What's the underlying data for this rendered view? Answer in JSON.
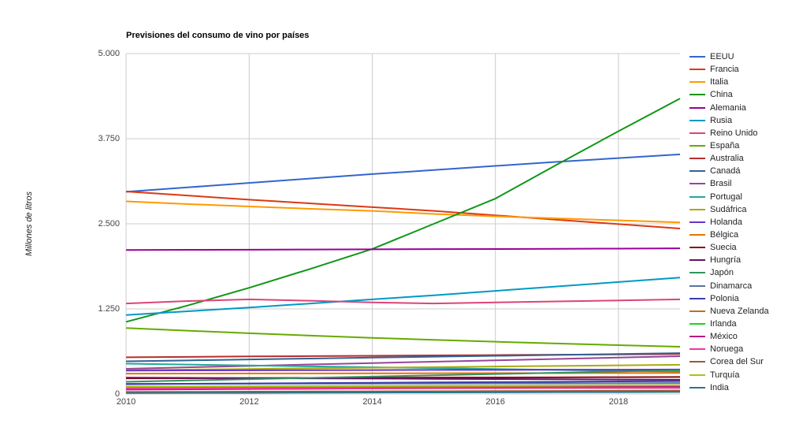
{
  "title": "Previsiones del consumo de vino por países",
  "y_axis_title": "Millones de litros",
  "chart_data": {
    "type": "line",
    "title": "Previsiones del consumo de vino por países",
    "ylabel": "Millones de litros",
    "xlabel": "",
    "xlim": [
      2010,
      2019
    ],
    "ylim": [
      0,
      5000
    ],
    "grid": true,
    "legend_position": "right",
    "x": [
      2010,
      2011,
      2012,
      2013,
      2014,
      2015,
      2016,
      2017,
      2018,
      2019
    ],
    "x_ticks": [
      2010,
      2012,
      2014,
      2016,
      2018
    ],
    "x_tick_labels": [
      "2010",
      "2012",
      "2014",
      "2016",
      "2018"
    ],
    "y_ticks": [
      0,
      1250,
      2500,
      3750,
      5000
    ],
    "y_tick_labels": [
      "0",
      "1.250",
      "2.500",
      "3.750",
      "5.000"
    ],
    "gridline_color": "#cccccc",
    "series": [
      {
        "name": "EEUU",
        "color": "#3366cc",
        "values": [
          2970,
          3035,
          3100,
          3165,
          3230,
          3290,
          3350,
          3410,
          3465,
          3520
        ]
      },
      {
        "name": "Francia",
        "color": "#dc3912",
        "values": [
          2975,
          2915,
          2855,
          2800,
          2745,
          2690,
          2625,
          2560,
          2495,
          2430
        ]
      },
      {
        "name": "Italia",
        "color": "#ff9900",
        "values": [
          2830,
          2790,
          2755,
          2720,
          2690,
          2645,
          2610,
          2580,
          2550,
          2520
        ]
      },
      {
        "name": "China",
        "color": "#109618",
        "values": [
          1060,
          1300,
          1560,
          1840,
          2130,
          2500,
          2870,
          3370,
          3860,
          4340
        ]
      },
      {
        "name": "Alemania",
        "color": "#990099",
        "values": [
          2115,
          2118,
          2120,
          2123,
          2125,
          2128,
          2130,
          2133,
          2136,
          2140
        ]
      },
      {
        "name": "Rusia",
        "color": "#0099c6",
        "values": [
          1160,
          1215,
          1270,
          1330,
          1390,
          1450,
          1515,
          1580,
          1645,
          1710
        ]
      },
      {
        "name": "Reino Unido",
        "color": "#dd4477",
        "values": [
          1330,
          1365,
          1390,
          1370,
          1345,
          1330,
          1345,
          1360,
          1375,
          1390
        ]
      },
      {
        "name": "España",
        "color": "#66aa00",
        "values": [
          970,
          930,
          893,
          858,
          825,
          795,
          768,
          742,
          718,
          695
        ]
      },
      {
        "name": "Australia",
        "color": "#b82e2e",
        "values": [
          540,
          546,
          552,
          557,
          562,
          567,
          572,
          577,
          582,
          587
        ]
      },
      {
        "name": "Canadá",
        "color": "#316395",
        "values": [
          480,
          494,
          508,
          521,
          535,
          548,
          561,
          574,
          587,
          600
        ]
      },
      {
        "name": "Brasil",
        "color": "#994499",
        "values": [
          370,
          392,
          413,
          434,
          455,
          475,
          495,
          515,
          535,
          555
        ]
      },
      {
        "name": "Portugal",
        "color": "#22aa99",
        "values": [
          445,
          432,
          419,
          406,
          393,
          380,
          367,
          355,
          342,
          330
        ]
      },
      {
        "name": "Sudáfrica",
        "color": "#aaaa11",
        "values": [
          350,
          359,
          368,
          377,
          386,
          395,
          404,
          413,
          421,
          430
        ]
      },
      {
        "name": "Holanda",
        "color": "#6633cc",
        "values": [
          345,
          347,
          349,
          350,
          352,
          354,
          355,
          357,
          358,
          360
        ]
      },
      {
        "name": "Bélgica",
        "color": "#e67300",
        "values": [
          300,
          301,
          302,
          303,
          304,
          305,
          306,
          307,
          308,
          310
        ]
      },
      {
        "name": "Suecia",
        "color": "#8b0707",
        "values": [
          230,
          232,
          234,
          237,
          239,
          241,
          243,
          245,
          248,
          250
        ]
      },
      {
        "name": "Hungría",
        "color": "#651067",
        "values": [
          240,
          237,
          233,
          230,
          227,
          223,
          220,
          217,
          213,
          210
        ]
      },
      {
        "name": "Japón",
        "color": "#329262",
        "values": [
          180,
          199,
          218,
          237,
          256,
          275,
          294,
          313,
          332,
          350
        ]
      },
      {
        "name": "Dinamarca",
        "color": "#5574a6",
        "values": [
          150,
          151,
          152,
          153,
          154,
          155,
          156,
          157,
          158,
          160
        ]
      },
      {
        "name": "Polonia",
        "color": "#3b3eac",
        "values": [
          145,
          150,
          155,
          160,
          165,
          170,
          175,
          180,
          185,
          190
        ]
      },
      {
        "name": "Nueva Zelanda",
        "color": "#b77322",
        "values": [
          90,
          92,
          94,
          97,
          99,
          101,
          103,
          105,
          108,
          110
        ]
      },
      {
        "name": "Irlanda",
        "color": "#16d620",
        "values": [
          75,
          77,
          79,
          80,
          82,
          84,
          85,
          87,
          88,
          90
        ]
      },
      {
        "name": "México",
        "color": "#b91383",
        "values": [
          65,
          69,
          74,
          78,
          83,
          87,
          92,
          96,
          101,
          105
        ]
      },
      {
        "name": "Noruega",
        "color": "#f4359e",
        "values": [
          80,
          81,
          82,
          83,
          84,
          86,
          87,
          88,
          89,
          90
        ]
      },
      {
        "name": "Corea del Sur",
        "color": "#9c5935",
        "values": [
          30,
          32,
          34,
          37,
          39,
          41,
          43,
          45,
          48,
          50
        ]
      },
      {
        "name": "Turquía",
        "color": "#a9c413",
        "values": [
          110,
          112,
          114,
          117,
          119,
          121,
          123,
          125,
          128,
          130
        ]
      },
      {
        "name": "India",
        "color": "#2a778d",
        "values": [
          15,
          17,
          18,
          20,
          22,
          23,
          25,
          27,
          28,
          30
        ]
      }
    ]
  }
}
